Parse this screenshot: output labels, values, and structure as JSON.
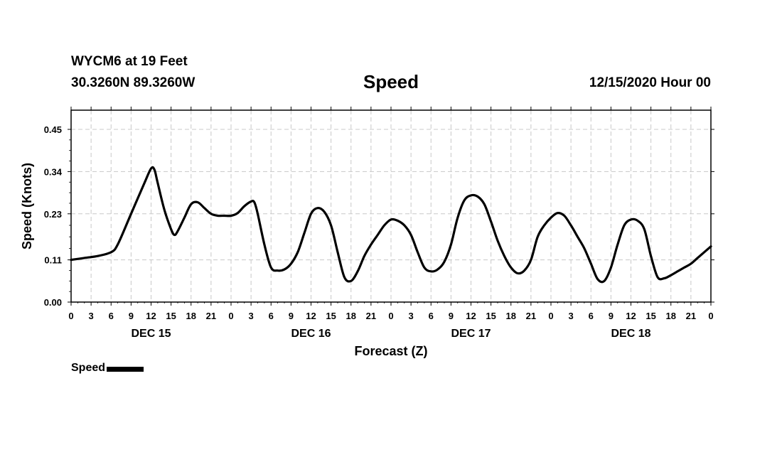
{
  "header": {
    "station": "WYCM6 at 19 Feet",
    "coords": "30.3260N 89.3260W",
    "title": "Speed",
    "stamp": "12/15/2020 Hour 00"
  },
  "legend": {
    "label": "Speed"
  },
  "chart_data": {
    "type": "line",
    "title": "Speed",
    "xlabel": "Forecast (Z)",
    "ylabel": "Speed (Knots)",
    "xlim": [
      0,
      96
    ],
    "ylim": [
      0,
      0.5
    ],
    "yticks": [
      0.0,
      0.11,
      0.23,
      0.34,
      0.45
    ],
    "ytick_labels": [
      "0.00",
      "0.11",
      "0.23",
      "0.34",
      "0.45"
    ],
    "x_tick_hours": [
      0,
      3,
      6,
      9,
      12,
      15,
      18,
      21,
      24,
      27,
      30,
      33,
      36,
      39,
      42,
      45,
      48,
      51,
      54,
      57,
      60,
      63,
      66,
      69,
      72,
      75,
      78,
      81,
      84,
      87,
      90,
      93,
      96
    ],
    "x_tick_labels": [
      "0",
      "3",
      "6",
      "9",
      "12",
      "15",
      "18",
      "21",
      "0",
      "3",
      "6",
      "9",
      "12",
      "15",
      "18",
      "21",
      "0",
      "3",
      "6",
      "9",
      "12",
      "15",
      "18",
      "21",
      "0",
      "3",
      "6",
      "9",
      "12",
      "15",
      "18",
      "21",
      "0"
    ],
    "day_labels": [
      {
        "hour": 12,
        "label": "DEC 15"
      },
      {
        "hour": 36,
        "label": "DEC 16"
      },
      {
        "hour": 60,
        "label": "DEC 17"
      },
      {
        "hour": 84,
        "label": "DEC 18"
      }
    ],
    "grid": true,
    "series": [
      {
        "name": "Speed",
        "color": "#000000",
        "x": [
          0,
          2,
          4,
          6,
          7,
          9,
          11,
          12,
          12.5,
          13,
          14,
          15,
          15.5,
          16,
          17,
          18,
          19,
          20,
          21,
          22,
          23,
          24,
          25,
          26,
          27,
          27.5,
          28,
          29,
          30,
          31,
          32,
          33,
          34,
          35,
          36,
          37,
          38,
          39,
          40,
          41,
          42,
          43,
          44,
          45,
          46,
          47,
          48,
          49,
          50,
          51,
          52,
          53,
          54,
          55,
          56,
          57,
          58,
          59,
          60,
          61,
          62,
          63,
          64,
          65,
          66,
          67,
          68,
          69,
          70,
          71,
          72,
          73,
          74,
          75,
          76,
          77,
          78,
          79,
          80,
          81,
          82,
          83,
          84,
          85,
          86,
          87,
          88,
          89,
          90,
          91,
          92,
          93,
          94,
          95,
          96
        ],
        "y": [
          0.11,
          0.115,
          0.12,
          0.13,
          0.15,
          0.23,
          0.31,
          0.348,
          0.345,
          0.31,
          0.24,
          0.19,
          0.175,
          0.185,
          0.22,
          0.255,
          0.26,
          0.245,
          0.23,
          0.225,
          0.225,
          0.225,
          0.232,
          0.25,
          0.262,
          0.26,
          0.23,
          0.15,
          0.09,
          0.082,
          0.085,
          0.1,
          0.13,
          0.18,
          0.23,
          0.245,
          0.235,
          0.2,
          0.13,
          0.065,
          0.055,
          0.08,
          0.12,
          0.15,
          0.175,
          0.2,
          0.215,
          0.212,
          0.2,
          0.175,
          0.13,
          0.09,
          0.08,
          0.085,
          0.105,
          0.15,
          0.22,
          0.265,
          0.278,
          0.275,
          0.255,
          0.21,
          0.16,
          0.12,
          0.09,
          0.075,
          0.082,
          0.11,
          0.17,
          0.2,
          0.22,
          0.232,
          0.225,
          0.2,
          0.17,
          0.14,
          0.1,
          0.06,
          0.055,
          0.09,
          0.15,
          0.2,
          0.215,
          0.212,
          0.19,
          0.12,
          0.065,
          0.062,
          0.07,
          0.08,
          0.09,
          0.1,
          0.115,
          0.13,
          0.145
        ]
      }
    ]
  }
}
